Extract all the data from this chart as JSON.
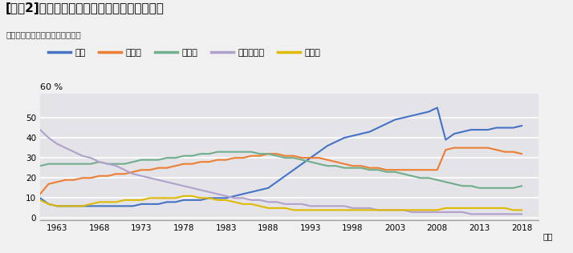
{
  "title": "[図表2]国保世帯主の職業別シェアの年次推移",
  "subtitle": "資料：厚生労働省資料を基に作成",
  "xlabel_right": "年度",
  "ylabel": "60 %",
  "fig_bg_color": "#f0f0f0",
  "plot_bg_color": "#e4e4e8",
  "series": [
    {
      "name": "無職",
      "color": "#4472c4",
      "years": [
        1961,
        1962,
        1963,
        1964,
        1965,
        1966,
        1967,
        1968,
        1969,
        1970,
        1971,
        1972,
        1973,
        1974,
        1975,
        1976,
        1977,
        1978,
        1979,
        1980,
        1981,
        1982,
        1983,
        1984,
        1985,
        1986,
        1987,
        1988,
        1989,
        1990,
        1991,
        1992,
        1993,
        1994,
        1995,
        1996,
        1997,
        1998,
        1999,
        2000,
        2001,
        2002,
        2003,
        2004,
        2005,
        2006,
        2007,
        2008,
        2009,
        2010,
        2011,
        2012,
        2013,
        2014,
        2015,
        2016,
        2017,
        2018
      ],
      "values": [
        10,
        7,
        6,
        6,
        6,
        6,
        6,
        6,
        6,
        6,
        6,
        6,
        7,
        7,
        7,
        8,
        8,
        9,
        9,
        9,
        10,
        10,
        10,
        11,
        12,
        13,
        14,
        15,
        18,
        21,
        24,
        27,
        30,
        33,
        36,
        38,
        40,
        41,
        42,
        43,
        45,
        47,
        49,
        50,
        51,
        52,
        53,
        55,
        39,
        42,
        43,
        44,
        44,
        44,
        45,
        45,
        45,
        46
      ]
    },
    {
      "name": "被用者",
      "color": "#ed7d31",
      "years": [
        1961,
        1962,
        1963,
        1964,
        1965,
        1966,
        1967,
        1968,
        1969,
        1970,
        1971,
        1972,
        1973,
        1974,
        1975,
        1976,
        1977,
        1978,
        1979,
        1980,
        1981,
        1982,
        1983,
        1984,
        1985,
        1986,
        1987,
        1988,
        1989,
        1990,
        1991,
        1992,
        1993,
        1994,
        1995,
        1996,
        1997,
        1998,
        1999,
        2000,
        2001,
        2002,
        2003,
        2004,
        2005,
        2006,
        2007,
        2008,
        2009,
        2010,
        2011,
        2012,
        2013,
        2014,
        2015,
        2016,
        2017,
        2018
      ],
      "values": [
        12,
        17,
        18,
        19,
        19,
        20,
        20,
        21,
        21,
        22,
        22,
        23,
        24,
        24,
        25,
        25,
        26,
        27,
        27,
        28,
        28,
        29,
        29,
        30,
        30,
        31,
        31,
        32,
        32,
        31,
        31,
        30,
        30,
        30,
        29,
        28,
        27,
        26,
        26,
        25,
        25,
        24,
        24,
        24,
        24,
        24,
        24,
        24,
        34,
        35,
        35,
        35,
        35,
        35,
        34,
        33,
        33,
        32
      ]
    },
    {
      "name": "自営業",
      "color": "#70ad8a",
      "years": [
        1961,
        1962,
        1963,
        1964,
        1965,
        1966,
        1967,
        1968,
        1969,
        1970,
        1971,
        1972,
        1973,
        1974,
        1975,
        1976,
        1977,
        1978,
        1979,
        1980,
        1981,
        1982,
        1983,
        1984,
        1985,
        1986,
        1987,
        1988,
        1989,
        1990,
        1991,
        1992,
        1993,
        1994,
        1995,
        1996,
        1997,
        1998,
        1999,
        2000,
        2001,
        2002,
        2003,
        2004,
        2005,
        2006,
        2007,
        2008,
        2009,
        2010,
        2011,
        2012,
        2013,
        2014,
        2015,
        2016,
        2017,
        2018
      ],
      "values": [
        26,
        27,
        27,
        27,
        27,
        27,
        27,
        28,
        27,
        27,
        27,
        28,
        29,
        29,
        29,
        30,
        30,
        31,
        31,
        32,
        32,
        33,
        33,
        33,
        33,
        33,
        32,
        32,
        31,
        30,
        30,
        29,
        28,
        27,
        26,
        26,
        25,
        25,
        25,
        24,
        24,
        23,
        23,
        22,
        21,
        20,
        20,
        19,
        18,
        17,
        16,
        16,
        15,
        15,
        15,
        15,
        15,
        16
      ]
    },
    {
      "name": "農林水産省",
      "color": "#b0a0cc",
      "years": [
        1961,
        1962,
        1963,
        1964,
        1965,
        1966,
        1967,
        1968,
        1969,
        1970,
        1971,
        1972,
        1973,
        1974,
        1975,
        1976,
        1977,
        1978,
        1979,
        1980,
        1981,
        1982,
        1983,
        1984,
        1985,
        1986,
        1987,
        1988,
        1989,
        1990,
        1991,
        1992,
        1993,
        1994,
        1995,
        1996,
        1997,
        1998,
        1999,
        2000,
        2001,
        2002,
        2003,
        2004,
        2005,
        2006,
        2007,
        2008,
        2009,
        2010,
        2011,
        2012,
        2013,
        2014,
        2015,
        2016,
        2017,
        2018
      ],
      "values": [
        44,
        40,
        37,
        35,
        33,
        31,
        30,
        28,
        27,
        26,
        24,
        22,
        21,
        20,
        19,
        18,
        17,
        16,
        15,
        14,
        13,
        12,
        11,
        10,
        10,
        9,
        9,
        8,
        8,
        7,
        7,
        7,
        6,
        6,
        6,
        6,
        6,
        5,
        5,
        5,
        4,
        4,
        4,
        4,
        3,
        3,
        3,
        3,
        3,
        3,
        3,
        2,
        2,
        2,
        2,
        2,
        2,
        2
      ]
    },
    {
      "name": "その他",
      "color": "#e0b800",
      "years": [
        1961,
        1962,
        1963,
        1964,
        1965,
        1966,
        1967,
        1968,
        1969,
        1970,
        1971,
        1972,
        1973,
        1974,
        1975,
        1976,
        1977,
        1978,
        1979,
        1980,
        1981,
        1982,
        1983,
        1984,
        1985,
        1986,
        1987,
        1988,
        1989,
        1990,
        1991,
        1992,
        1993,
        1994,
        1995,
        1996,
        1997,
        1998,
        1999,
        2000,
        2001,
        2002,
        2003,
        2004,
        2005,
        2006,
        2007,
        2008,
        2009,
        2010,
        2011,
        2012,
        2013,
        2014,
        2015,
        2016,
        2017,
        2018
      ],
      "values": [
        9,
        7,
        6,
        6,
        6,
        6,
        7,
        8,
        8,
        8,
        9,
        9,
        9,
        10,
        10,
        10,
        10,
        11,
        11,
        10,
        10,
        9,
        9,
        8,
        7,
        7,
        6,
        5,
        5,
        5,
        4,
        4,
        4,
        4,
        4,
        4,
        4,
        4,
        4,
        4,
        4,
        4,
        4,
        4,
        4,
        4,
        4,
        4,
        5,
        5,
        5,
        5,
        5,
        5,
        5,
        5,
        4,
        4
      ]
    }
  ],
  "xticks": [
    1963,
    1968,
    1973,
    1978,
    1983,
    1988,
    1993,
    1998,
    2003,
    2008,
    2013,
    2018
  ],
  "yticks": [
    0,
    10,
    20,
    30,
    40,
    50
  ],
  "ylim": [
    -1,
    62
  ],
  "xlim": [
    1961,
    2020
  ]
}
